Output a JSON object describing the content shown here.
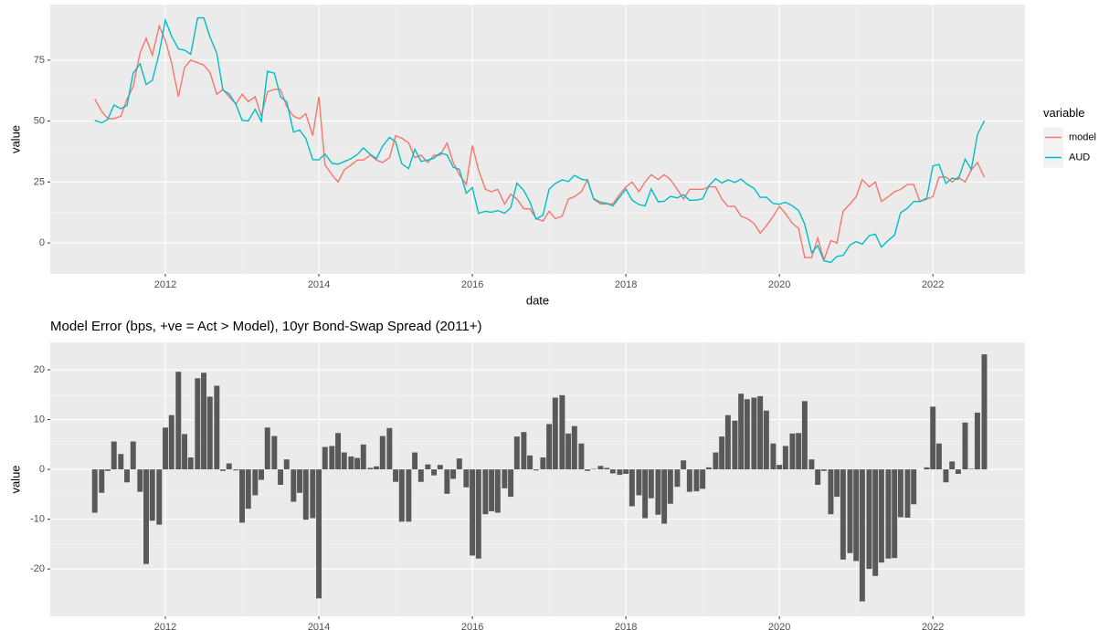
{
  "chart_data": [
    {
      "type": "line",
      "xlabel": "date",
      "ylabel": "value",
      "legend_title": "variable",
      "legend": "right",
      "xlim": [
        2010.5,
        2023.2
      ],
      "ylim": [
        -12.7,
        97.8
      ],
      "xticks": [
        2012,
        2014,
        2016,
        2018,
        2020,
        2022
      ],
      "yticks": [
        0,
        25,
        50,
        75
      ],
      "grid": true,
      "x": [
        2011.08,
        2011.17,
        2011.25,
        2011.33,
        2011.42,
        2011.5,
        2011.58,
        2011.67,
        2011.75,
        2011.83,
        2011.92,
        2012,
        2012.08,
        2012.17,
        2012.25,
        2012.33,
        2012.42,
        2012.5,
        2012.58,
        2012.67,
        2012.75,
        2012.83,
        2012.92,
        2013,
        2013.08,
        2013.17,
        2013.25,
        2013.33,
        2013.42,
        2013.5,
        2013.58,
        2013.67,
        2013.75,
        2013.83,
        2013.92,
        2014,
        2014.08,
        2014.17,
        2014.25,
        2014.33,
        2014.42,
        2014.5,
        2014.58,
        2014.67,
        2014.75,
        2014.83,
        2014.92,
        2015,
        2015.08,
        2015.17,
        2015.25,
        2015.33,
        2015.42,
        2015.5,
        2015.58,
        2015.67,
        2015.75,
        2015.83,
        2015.92,
        2016,
        2016.08,
        2016.17,
        2016.25,
        2016.33,
        2016.42,
        2016.5,
        2016.58,
        2016.67,
        2016.75,
        2016.83,
        2016.92,
        2017,
        2017.08,
        2017.17,
        2017.25,
        2017.33,
        2017.42,
        2017.5,
        2017.58,
        2017.67,
        2017.75,
        2017.83,
        2017.92,
        2018,
        2018.08,
        2018.17,
        2018.25,
        2018.33,
        2018.42,
        2018.5,
        2018.58,
        2018.67,
        2018.75,
        2018.83,
        2018.92,
        2019,
        2019.08,
        2019.17,
        2019.25,
        2019.33,
        2019.42,
        2019.5,
        2019.58,
        2019.67,
        2019.75,
        2019.83,
        2019.92,
        2020,
        2020.08,
        2020.17,
        2020.25,
        2020.33,
        2020.42,
        2020.5,
        2020.58,
        2020.67,
        2020.75,
        2020.83,
        2020.92,
        2021,
        2021.08,
        2021.17,
        2021.25,
        2021.33,
        2021.42,
        2021.5,
        2021.58,
        2021.67,
        2021.75,
        2021.83,
        2021.92,
        2022,
        2022.08,
        2022.17,
        2022.25,
        2022.33,
        2022.42,
        2022.5,
        2022.58,
        2022.67
      ],
      "series": [
        {
          "name": "model",
          "color": "#F8766D",
          "values": [
            59,
            54,
            51,
            51,
            52,
            59,
            64,
            78,
            84,
            77,
            89,
            83,
            74,
            60,
            72,
            75,
            74,
            73,
            70,
            61,
            63,
            60,
            57,
            61,
            58,
            60,
            52,
            62,
            63,
            63,
            56,
            52,
            51,
            53,
            44,
            60,
            32,
            28,
            25,
            30,
            32,
            34,
            34,
            36,
            34,
            33,
            35,
            44,
            43,
            41,
            35,
            36,
            33,
            36,
            36,
            41,
            33,
            28,
            24,
            40,
            30,
            22,
            21,
            22,
            16,
            20,
            18,
            14,
            14,
            10,
            9,
            13,
            10,
            11,
            18,
            19,
            21,
            26,
            18,
            16,
            16,
            16,
            20,
            23,
            25,
            21,
            25,
            28,
            26,
            28,
            26,
            22,
            18,
            22,
            22,
            22,
            23,
            23,
            18,
            15,
            15,
            11,
            10,
            8,
            4,
            7,
            11,
            15,
            12,
            8,
            6,
            -6,
            -6,
            2,
            -7,
            1,
            0,
            13,
            16,
            19,
            26,
            23,
            25,
            17,
            19,
            21,
            22,
            24,
            24,
            17,
            18,
            19,
            27,
            27,
            25,
            27,
            25,
            30,
            33,
            27
          ]
        },
        {
          "name": "AUD",
          "color": "#00BFC4",
          "values": [
            50.3,
            49.3,
            50.7,
            56.6,
            55.1,
            56.4,
            69.6,
            73.5,
            65,
            66.7,
            77.9,
            91.4,
            84.9,
            79.6,
            79.1,
            77.4,
            92.3,
            92.4,
            84.6,
            77.8,
            62.7,
            61.2,
            56.8,
            50.3,
            50.1,
            54.8,
            49.9,
            70.4,
            69.7,
            59.9,
            58,
            45.5,
            46.3,
            42.9,
            34.2,
            34.1,
            36.5,
            32.7,
            32.3,
            33.4,
            34.6,
            36.3,
            39,
            36.3,
            34.6,
            39.7,
            43.3,
            41.5,
            32.5,
            30.5,
            38.4,
            33.5,
            34,
            34.8,
            36.9,
            36.1,
            31.1,
            30.2,
            20.4,
            22.7,
            12.1,
            13,
            12.6,
            13.3,
            12.2,
            14.5,
            24.6,
            21.5,
            16.8,
            9.8,
            11.4,
            22.1,
            24.4,
            25.9,
            25.2,
            27.7,
            26.2,
            25.7,
            18.1,
            16.7,
            16.3,
            15.2,
            18.9,
            22.1,
            17.6,
            15.8,
            15.2,
            22.2,
            16.9,
            17.1,
            19.1,
            18.5,
            19.8,
            17.5,
            17.6,
            18.1,
            23.4,
            26.4,
            24.6,
            25.9,
            24.8,
            26.2,
            24.1,
            22.4,
            18.7,
            18.8,
            16.2,
            15.9,
            16.7,
            15.2,
            13.3,
            7.7,
            -4,
            -1.1,
            -7.3,
            -8,
            -5.5,
            -5.1,
            -0.8,
            0.6,
            -0.5,
            3,
            3.6,
            -1.7,
            1.1,
            3.2,
            12.4,
            14.3,
            17,
            17,
            18.4,
            31.6,
            32.2,
            24.4,
            26.6,
            26.1,
            34.4,
            30.1,
            44.4,
            50.1
          ]
        }
      ]
    },
    {
      "type": "bar",
      "title": "Model Error (bps, +ve = Act > Model), 10yr Bond-Swap Spread (2011+)",
      "ylabel": "value",
      "color": "#595959",
      "xlim": [
        2010.5,
        2023.2
      ],
      "ylim": [
        -29.5,
        25.5
      ],
      "xticks": [
        2012,
        2014,
        2016,
        2018,
        2020,
        2022
      ],
      "yticks": [
        -20,
        -10,
        0,
        10,
        20
      ],
      "grid": true,
      "x": [
        2011.08,
        2011.17,
        2011.25,
        2011.33,
        2011.42,
        2011.5,
        2011.58,
        2011.67,
        2011.75,
        2011.83,
        2011.92,
        2012,
        2012.08,
        2012.17,
        2012.25,
        2012.33,
        2012.42,
        2012.5,
        2012.58,
        2012.67,
        2012.75,
        2012.83,
        2012.92,
        2013,
        2013.08,
        2013.17,
        2013.25,
        2013.33,
        2013.42,
        2013.5,
        2013.58,
        2013.67,
        2013.75,
        2013.83,
        2013.92,
        2014,
        2014.08,
        2014.17,
        2014.25,
        2014.33,
        2014.42,
        2014.5,
        2014.58,
        2014.67,
        2014.75,
        2014.83,
        2014.92,
        2015,
        2015.08,
        2015.17,
        2015.25,
        2015.33,
        2015.42,
        2015.5,
        2015.58,
        2015.67,
        2015.75,
        2015.83,
        2015.92,
        2016,
        2016.08,
        2016.17,
        2016.25,
        2016.33,
        2016.42,
        2016.5,
        2016.58,
        2016.67,
        2016.75,
        2016.83,
        2016.92,
        2017,
        2017.08,
        2017.17,
        2017.25,
        2017.33,
        2017.42,
        2017.5,
        2017.58,
        2017.67,
        2017.75,
        2017.83,
        2017.92,
        2018,
        2018.08,
        2018.17,
        2018.25,
        2018.33,
        2018.42,
        2018.5,
        2018.58,
        2018.67,
        2018.75,
        2018.83,
        2018.92,
        2019,
        2019.08,
        2019.17,
        2019.25,
        2019.33,
        2019.42,
        2019.5,
        2019.58,
        2019.67,
        2019.75,
        2019.83,
        2019.92,
        2020,
        2020.08,
        2020.17,
        2020.25,
        2020.33,
        2020.42,
        2020.5,
        2020.58,
        2020.67,
        2020.75,
        2020.83,
        2020.92,
        2021,
        2021.08,
        2021.17,
        2021.25,
        2021.33,
        2021.42,
        2021.5,
        2021.58,
        2021.67,
        2021.75,
        2021.83,
        2021.92,
        2022,
        2022.08,
        2022.17,
        2022.25,
        2022.33,
        2022.42,
        2022.5,
        2022.58,
        2022.67
      ],
      "values": [
        -8.7,
        -4.7,
        -0.3,
        5.6,
        3.1,
        -2.6,
        5.6,
        -4.5,
        -19,
        -10.3,
        -11.1,
        8.4,
        10.9,
        19.6,
        7.1,
        2.4,
        18.3,
        19.4,
        14.6,
        16.8,
        -0.3,
        1.2,
        -0.2,
        -10.7,
        -7.9,
        -5.2,
        -2.1,
        8.4,
        6.7,
        -3.1,
        2,
        -6.5,
        -4.7,
        -10.1,
        -9.8,
        -25.9,
        4.5,
        4.7,
        7.3,
        3.4,
        2.6,
        2.3,
        5,
        0.3,
        0.6,
        6.7,
        8.3,
        -2.5,
        -10.5,
        -10.5,
        3.4,
        -2.5,
        1,
        -1.2,
        0.9,
        -4.9,
        -1.9,
        2.2,
        -3.6,
        -17.3,
        -17.9,
        -9,
        -8.4,
        -8.7,
        -3.8,
        -5.5,
        6.6,
        7.5,
        2.8,
        -0.2,
        2.4,
        9.1,
        14.4,
        14.9,
        7.2,
        8.7,
        5.2,
        -0.3,
        0.1,
        0.7,
        0.3,
        -0.8,
        -1.1,
        -0.9,
        -7.4,
        -5.2,
        -9.8,
        -5.8,
        -9.1,
        -10.9,
        -6.9,
        -3.5,
        1.8,
        -4.5,
        -4.4,
        -3.9,
        0.4,
        3.4,
        6.6,
        10.9,
        9.8,
        15.2,
        14.1,
        14.4,
        14.7,
        11.8,
        5.2,
        0.9,
        4.7,
        7.2,
        7.3,
        13.7,
        2,
        -3.1,
        -0.3,
        -9,
        -5.5,
        -18.1,
        -16.8,
        -18.4,
        -26.5,
        -20,
        -21.4,
        -18.7,
        -17.9,
        -17.8,
        -9.6,
        -9.7,
        -7,
        0,
        0.4,
        12.6,
        5.2,
        -2.6,
        1.6,
        -0.9,
        9.4,
        0.1,
        11.4,
        23.1
      ]
    }
  ]
}
